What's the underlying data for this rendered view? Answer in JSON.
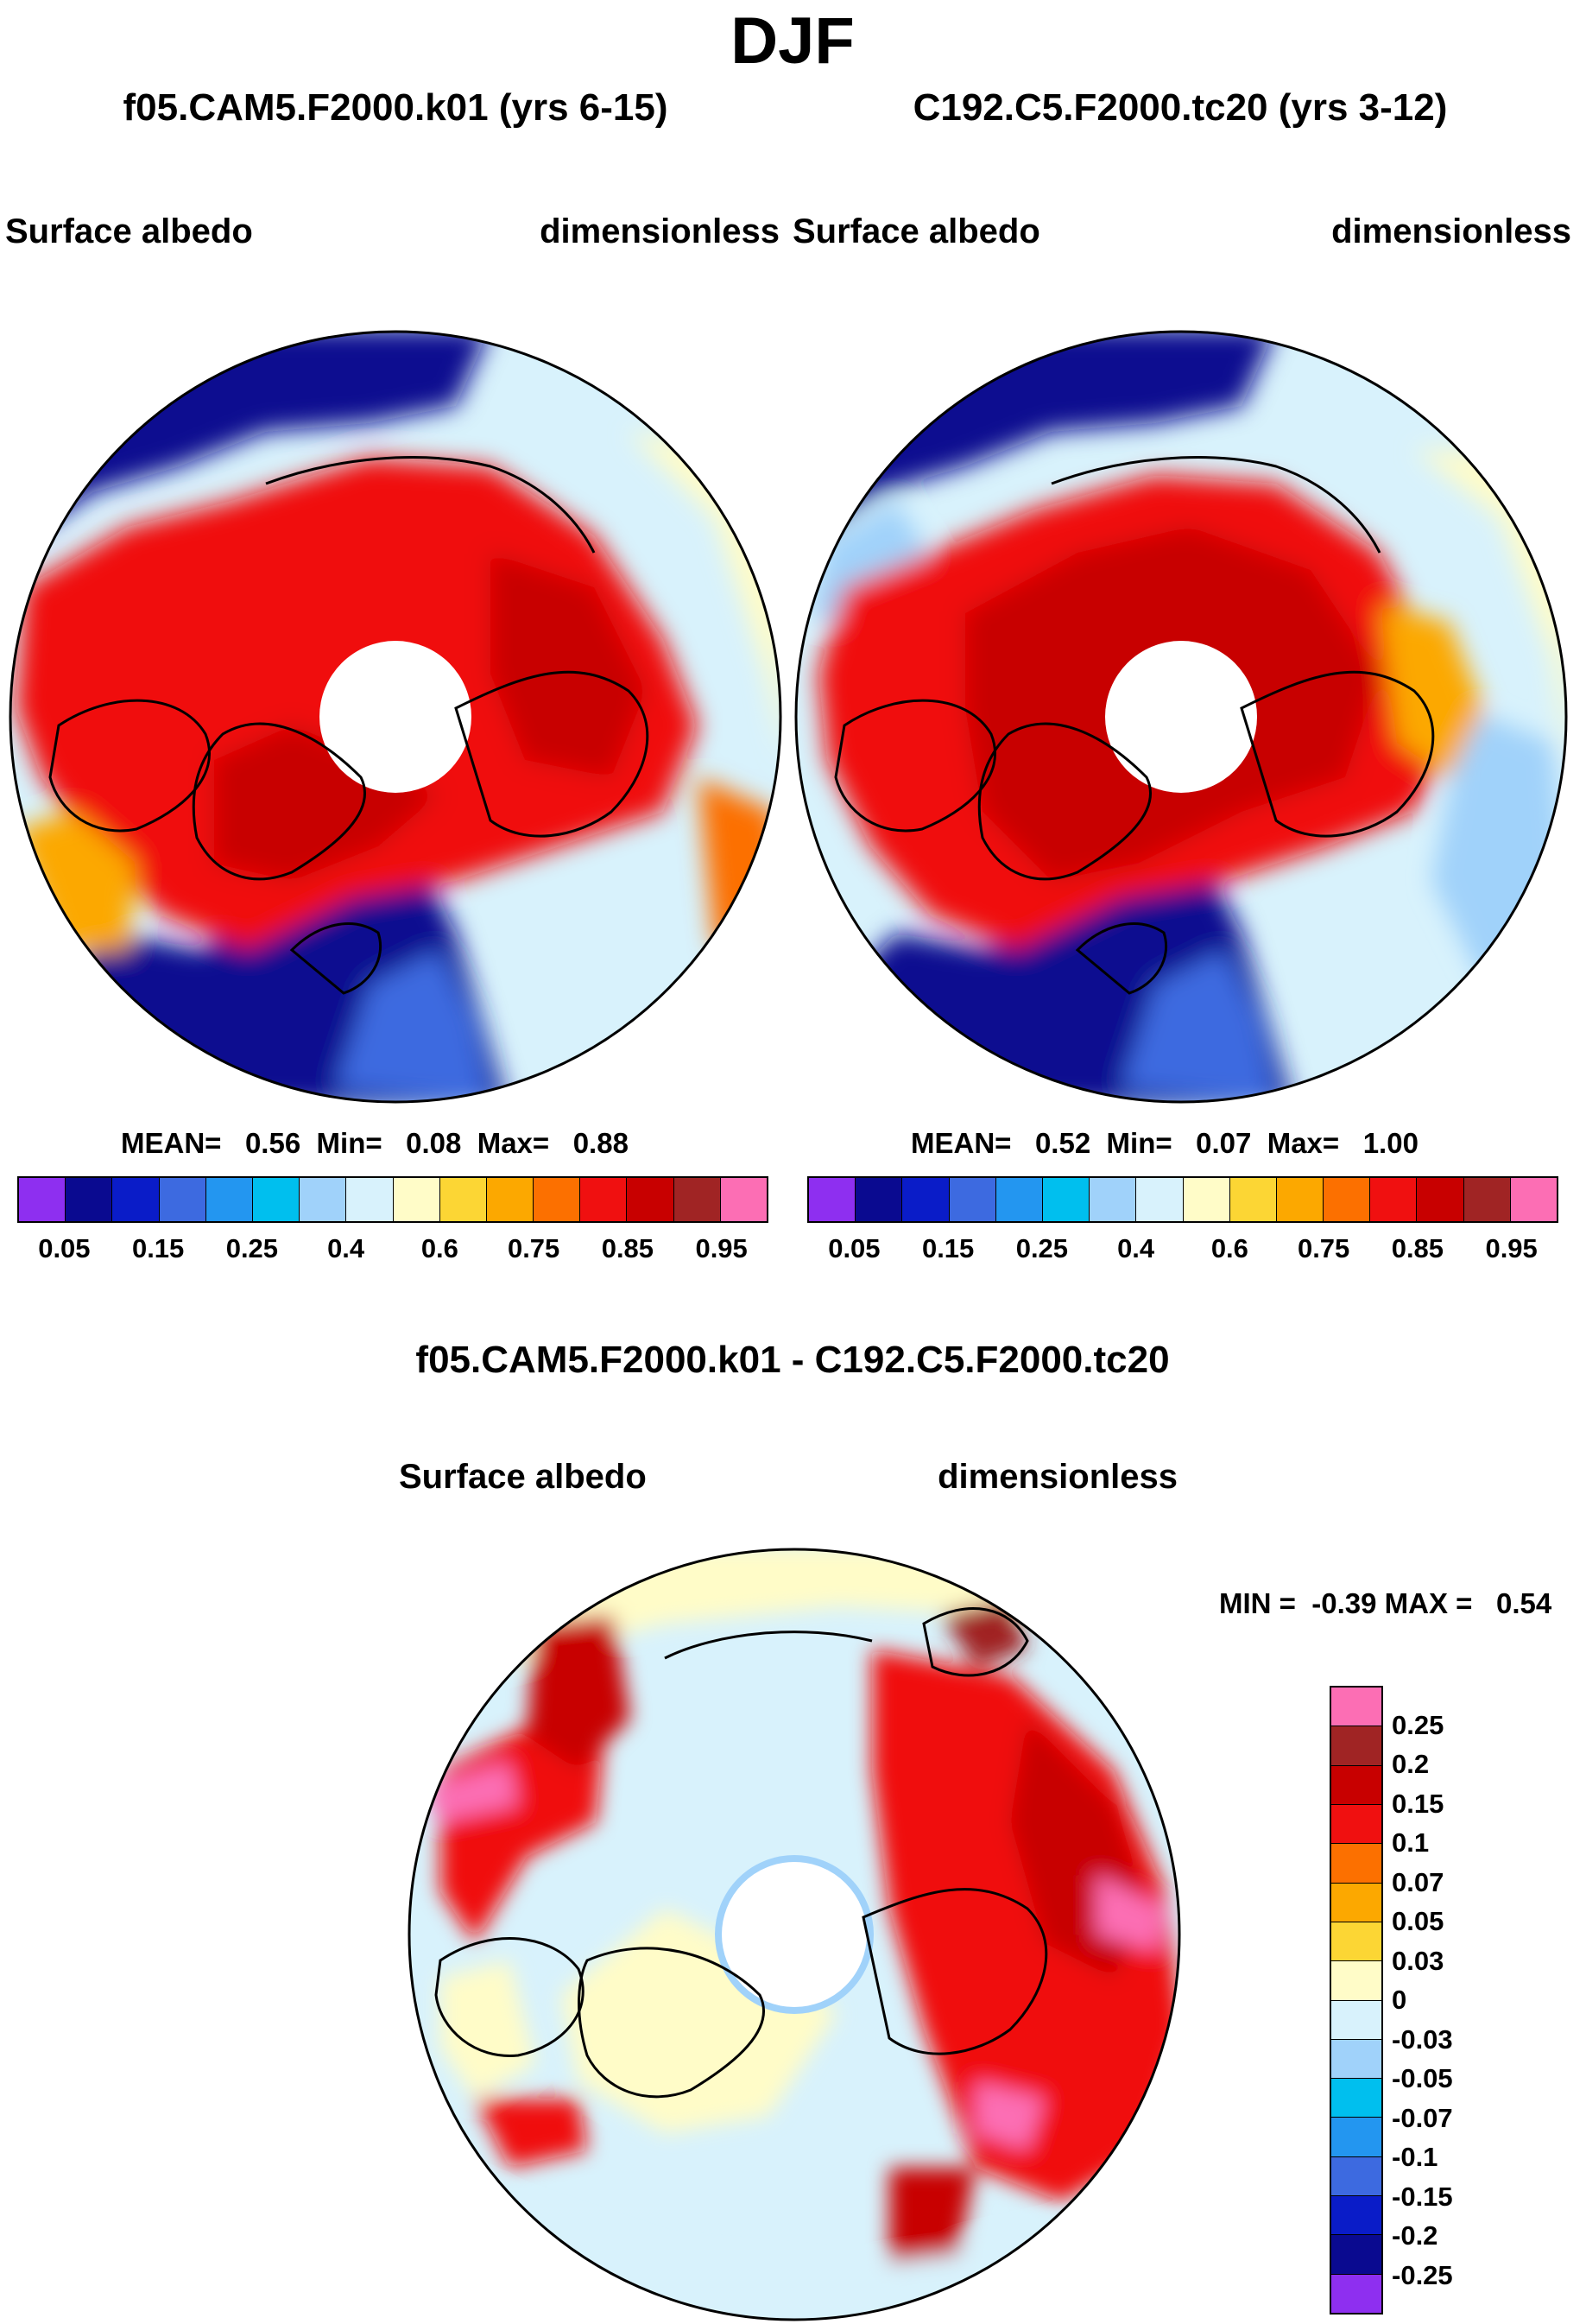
{
  "figure": {
    "title": "DJF",
    "diff_title": "f05.CAM5.F2000.k01 - C192.C5.F2000.tc20"
  },
  "panels": [
    {
      "run": "f05.CAM5.F2000.k01 (yrs 6-15)",
      "variable": "Surface albedo",
      "units": "dimensionless",
      "stats": {
        "mean_label": "MEAN=",
        "mean": "0.56",
        "min_label": "Min=",
        "min": "0.08",
        "max_label": "Max=",
        "max": "0.88"
      }
    },
    {
      "run": "C192.C5.F2000.tc20 (yrs 3-12)",
      "variable": "Surface albedo",
      "units": "dimensionless",
      "stats": {
        "mean_label": "MEAN=",
        "mean": "0.52",
        "min_label": "Min=",
        "min": "0.07",
        "max_label": "Max=",
        "max": "1.00"
      }
    },
    {
      "run": "f05.CAM5.F2000.k01 - C192.C5.F2000.tc20",
      "variable": "Surface albedo",
      "units": "dimensionless",
      "stats": {
        "min_label": "MIN =",
        "min": "-0.39",
        "max_label": "MAX =",
        "max": "0.54"
      }
    }
  ],
  "colorbar_abs": {
    "colors": [
      "#8e2ff0",
      "#0a0a90",
      "#0a1cc8",
      "#3d6ae0",
      "#2396f0",
      "#00bfee",
      "#a0d2fa",
      "#d8f2fc",
      "#fffcc8",
      "#fcd634",
      "#fca800",
      "#fc7000",
      "#f01010",
      "#c80000",
      "#a02424",
      "#fc6eb4"
    ],
    "labels": [
      "0.05",
      "0.15",
      "0.25",
      "0.4",
      "0.6",
      "0.75",
      "0.85",
      "0.95"
    ]
  },
  "colorbar_diff": {
    "colors": [
      "#fc6eb4",
      "#a02424",
      "#c80000",
      "#f01010",
      "#fc7000",
      "#fca800",
      "#fcd634",
      "#fffcc8",
      "#d8f2fc",
      "#a0d2fa",
      "#00bfee",
      "#2396f0",
      "#3d6ae0",
      "#0a1cc8",
      "#0a0a90",
      "#8e2ff0"
    ],
    "labels": [
      "0.25",
      "0.2",
      "0.15",
      "0.1",
      "0.07",
      "0.05",
      "0.03",
      "0",
      "-0.03",
      "-0.05",
      "-0.07",
      "-0.1",
      "-0.15",
      "-0.2",
      "-0.25"
    ]
  }
}
